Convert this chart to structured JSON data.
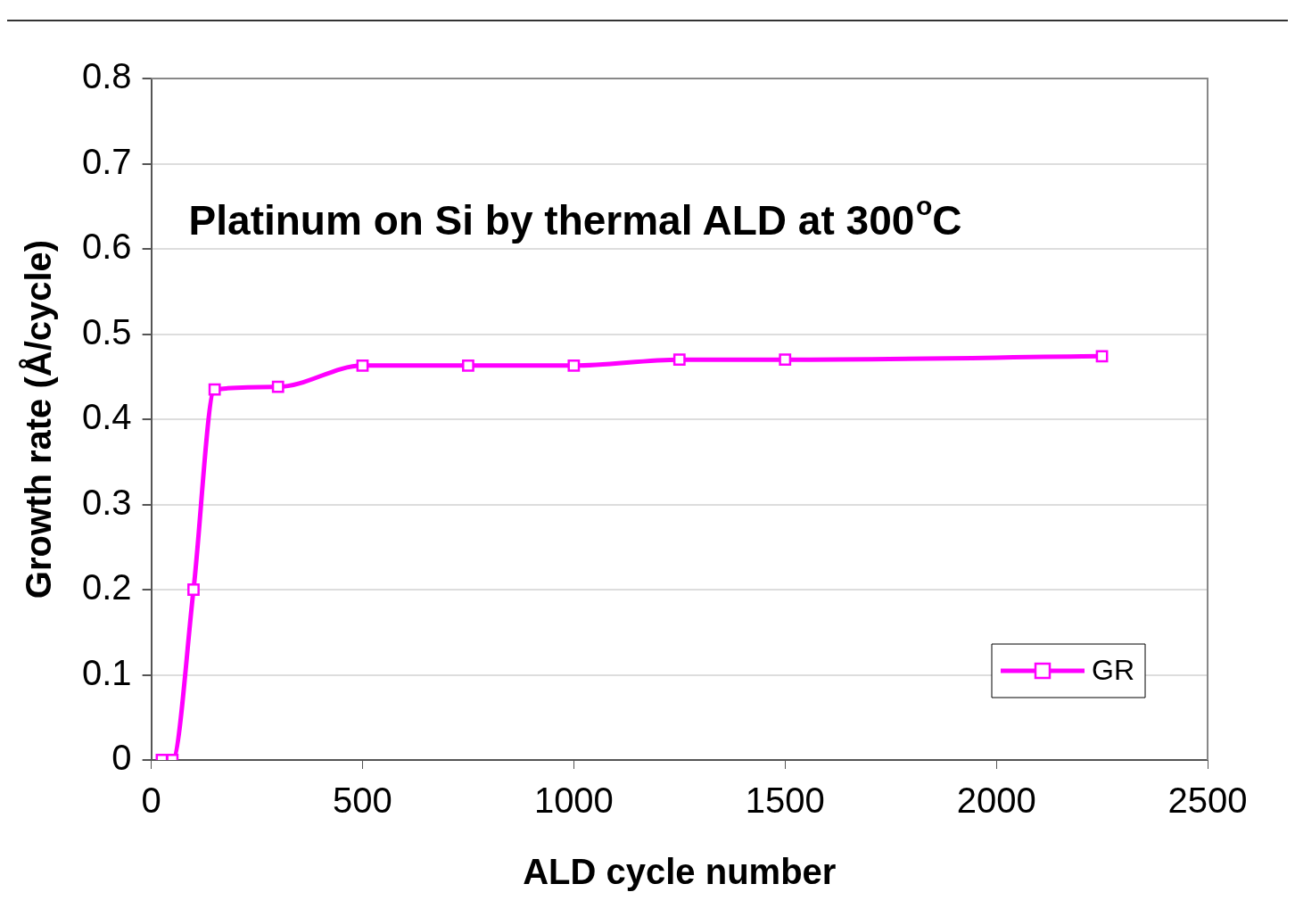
{
  "chart_data": {
    "type": "line",
    "title": "Platinum on Si by thermal ALD at 300$^{o}$C",
    "xlabel": "ALD cycle number",
    "ylabel": "Growth rate (Å/cycle)",
    "x": [
      25,
      50,
      100,
      150,
      300,
      500,
      750,
      1000,
      1250,
      1500,
      2250
    ],
    "series": [
      {
        "name": "GR",
        "color": "#ff00ff",
        "values": [
          0,
          0,
          0.2,
          0.435,
          0.438,
          0.463,
          0.463,
          0.463,
          0.47,
          0.47,
          0.474
        ]
      }
    ],
    "xlim": [
      0,
      2500
    ],
    "xticks": [
      0,
      500,
      1000,
      1500,
      2000,
      2500
    ],
    "ylim": [
      0,
      0.8
    ],
    "yticks": [
      0,
      0.1,
      0.2,
      0.3,
      0.4,
      0.5,
      0.6,
      0.7,
      0.8
    ],
    "grid": "y",
    "legend": "bottom right",
    "marker": "square",
    "line_style": "solid"
  }
}
